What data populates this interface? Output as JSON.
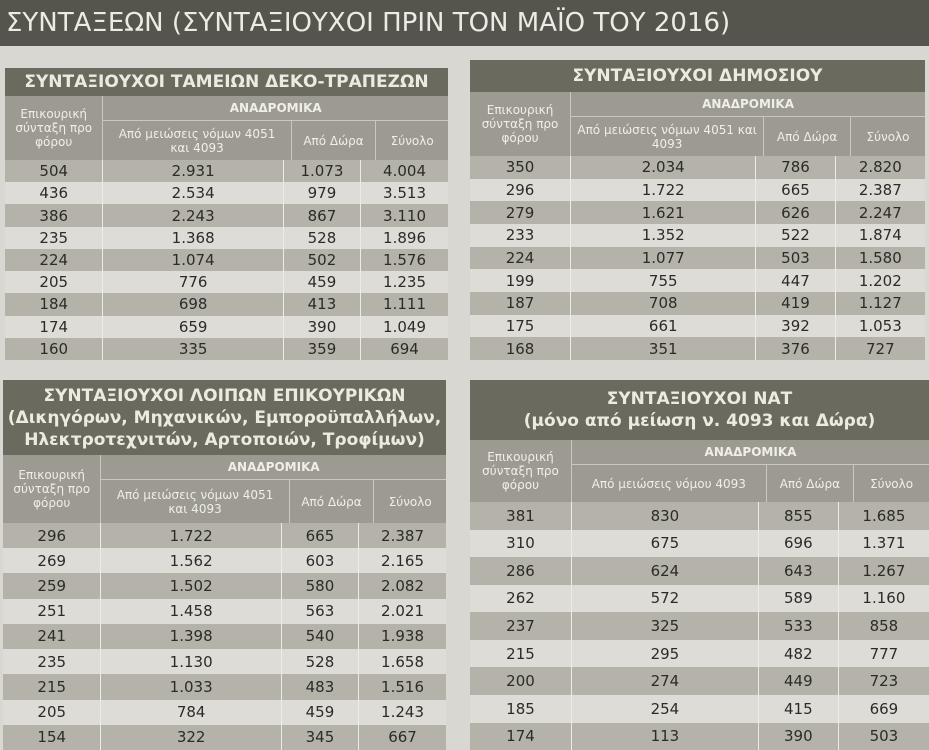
{
  "banner": "ΣΥΝΤΑΞΕΩΝ (ΣΥΝΤΑΞΙΟΥΧΟΙ ΠΡΙΝ ΤΟΝ ΜΑΪΟ ΤΟΥ 2016)",
  "tables": [
    {
      "title": [
        "ΣΥΝΤΑΞΙΟΥΧΟΙ ΤΑΜΕΙΩΝ ΔΕΚΟ-ΤΡΑΠΕΖΩΝ"
      ],
      "col0": "Επικουρική σύνταξη προ φόρου",
      "group": "ΑΝΑΔΡΟΜΙΚΑ",
      "cols": [
        "Από μειώσεις νόμων 4051 και 4093",
        "Από Δώρα",
        "Σύνολο"
      ],
      "rows": [
        [
          "504",
          "2.931",
          "1.073",
          "4.004"
        ],
        [
          "436",
          "2.534",
          "979",
          "3.513"
        ],
        [
          "386",
          "2.243",
          "867",
          "3.110"
        ],
        [
          "235",
          "1.368",
          "528",
          "1.896"
        ],
        [
          "224",
          "1.074",
          "502",
          "1.576"
        ],
        [
          "205",
          "776",
          "459",
          "1.235"
        ],
        [
          "184",
          "698",
          "413",
          "1.111"
        ],
        [
          "174",
          "659",
          "390",
          "1.049"
        ],
        [
          "160",
          "335",
          "359",
          "694"
        ]
      ]
    },
    {
      "title": [
        "ΣΥΝΤΑΞΙΟΥΧΟΙ ΔΗΜΟΣΙΟΥ"
      ],
      "col0": "Επικουρική σύνταξη προ φόρου",
      "group": "ΑΝΑΔΡΟΜΙΚΑ",
      "cols": [
        "Από μειώσεις νόμων 4051 και 4093",
        "Από Δώρα",
        "Σύνολο"
      ],
      "rows": [
        [
          "350",
          "2.034",
          "786",
          "2.820"
        ],
        [
          "296",
          "1.722",
          "665",
          "2.387"
        ],
        [
          "279",
          "1.621",
          "626",
          "2.247"
        ],
        [
          "233",
          "1.352",
          "522",
          "1.874"
        ],
        [
          "224",
          "1.077",
          "503",
          "1.580"
        ],
        [
          "199",
          "755",
          "447",
          "1.202"
        ],
        [
          "187",
          "708",
          "419",
          "1.127"
        ],
        [
          "175",
          "661",
          "392",
          "1.053"
        ],
        [
          "168",
          "351",
          "376",
          "727"
        ]
      ]
    },
    {
      "title": [
        "ΣΥΝΤΑΞΙΟΥΧΟΙ ΛΟΙΠΩΝ ΕΠΙΚΟΥΡΙΚΩΝ",
        "(Δικηγόρων, Μηχανικών, Εμποροϋπαλλήλων,",
        "Ηλεκτροτεχνιτών, Αρτοποιών, Τροφίμων)"
      ],
      "col0": "Επικουρική σύνταξη προ φόρου",
      "group": "ΑΝΑΔΡΟΜΙΚΑ",
      "cols": [
        "Από μειώσεις νόμων 4051 και 4093",
        "Από Δώρα",
        "Σύνολο"
      ],
      "rows": [
        [
          "296",
          "1.722",
          "665",
          "2.387"
        ],
        [
          "269",
          "1.562",
          "603",
          "2.165"
        ],
        [
          "259",
          "1.502",
          "580",
          "2.082"
        ],
        [
          "251",
          "1.458",
          "563",
          "2.021"
        ],
        [
          "241",
          "1.398",
          "540",
          "1.938"
        ],
        [
          "235",
          "1.130",
          "528",
          "1.658"
        ],
        [
          "215",
          "1.033",
          "483",
          "1.516"
        ],
        [
          "205",
          "784",
          "459",
          "1.243"
        ],
        [
          "154",
          "322",
          "345",
          "667"
        ]
      ]
    },
    {
      "title": [
        "ΣΥΝΤΑΞΙΟΥΧΟΙ ΝΑΤ",
        "(μόνο από μείωση ν. 4093 και Δώρα)"
      ],
      "col0": "Επικουρική σύνταξη προ φόρου",
      "group": "ΑΝΑΔΡΟΜΙΚΑ",
      "cols": [
        "Από μειώσεις νόμου 4093",
        "Από Δώρα",
        "Σύνολο"
      ],
      "rows": [
        [
          "381",
          "830",
          "855",
          "1.685"
        ],
        [
          "310",
          "675",
          "696",
          "1.371"
        ],
        [
          "286",
          "624",
          "643",
          "1.267"
        ],
        [
          "262",
          "572",
          "589",
          "1.160"
        ],
        [
          "237",
          "325",
          "533",
          "858"
        ],
        [
          "215",
          "295",
          "482",
          "777"
        ],
        [
          "200",
          "274",
          "449",
          "723"
        ],
        [
          "185",
          "254",
          "415",
          "669"
        ],
        [
          "174",
          "113",
          "390",
          "503"
        ]
      ]
    }
  ]
}
